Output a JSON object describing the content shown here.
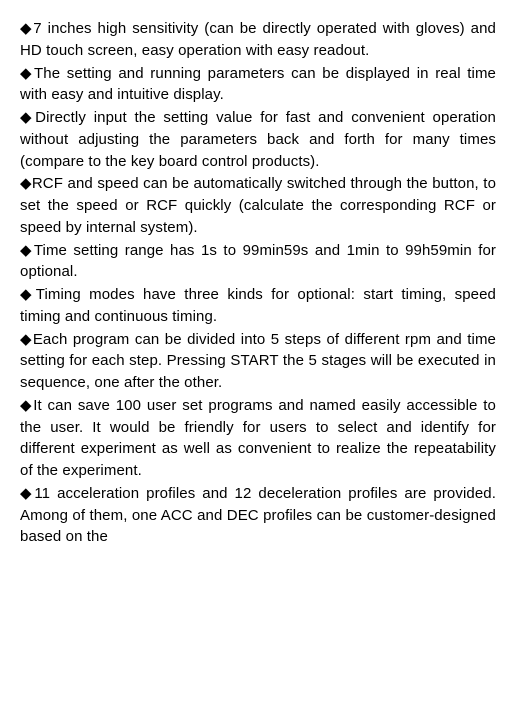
{
  "bullets": [
    {
      "text": "7 inches high sensitivity (can be directly operated with gloves) and HD touch screen, easy operation with easy readout.",
      "cls": ""
    },
    {
      "text": "The setting and running parameters can be displayed in real time with easy and intuitive display.",
      "cls": ""
    },
    {
      "text": "Directly input the setting value for fast and convenient operation without adjusting the parameters back and forth for many times (compare to the key board control products).",
      "cls": ""
    },
    {
      "text": "RCF and speed can be automatically switched through the button, to set the speed or RCF quickly (calculate the corresponding RCF or speed by internal system).",
      "cls": ""
    },
    {
      "text": "Time setting range has 1s to 99min59s and 1min to 99h59min for optional.",
      "cls": ""
    },
    {
      "text": "Timing modes have three kinds for optional: start timing, speed timing and continuous timing.",
      "cls": ""
    },
    {
      "text": "Each program can be divided into 5 steps of different rpm and time setting for each step. Pressing START the 5 stages will be executed in sequence, one after the other.",
      "cls": ""
    },
    {
      "text": "It can save 100 user set programs and named easily accessible to the user. It would be friendly for users to select and identify for different experiment as well as convenient to realize the repeatability of the experiment.",
      "cls": ""
    },
    {
      "text": "11 acceleration profiles and 12 deceleration profiles are provided. Among of them, one ACC and DEC profiles can be customer-designed based on the",
      "cls": ""
    }
  ],
  "bullet_glyph": "◆"
}
